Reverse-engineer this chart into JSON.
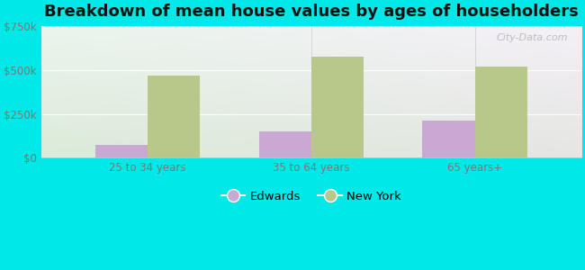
{
  "title": "Breakdown of mean house values by ages of householders",
  "categories": [
    "25 to 34 years",
    "35 to 64 years",
    "65 years+"
  ],
  "edwards_values": [
    75000,
    150000,
    210000
  ],
  "newyork_values": [
    470000,
    575000,
    520000
  ],
  "edwards_color": "#c9a8d4",
  "newyork_color": "#b8c88a",
  "background_color": "#00e8e8",
  "ylim": [
    0,
    750000
  ],
  "yticks": [
    0,
    250000,
    500000,
    750000
  ],
  "ytick_labels": [
    "$0",
    "$250k",
    "$500k",
    "$750k"
  ],
  "legend_labels": [
    "Edwards",
    "New York"
  ],
  "bar_width": 0.32,
  "watermark": "City-Data.com",
  "title_fontsize": 13,
  "tick_fontsize": 8.5,
  "legend_fontsize": 9.5,
  "grad_top_left": "#c8ead4",
  "grad_top_right": "#e8f5f0",
  "grad_bottom_left": "#c0e8c8",
  "grad_bottom_right": "#e0f2e8"
}
